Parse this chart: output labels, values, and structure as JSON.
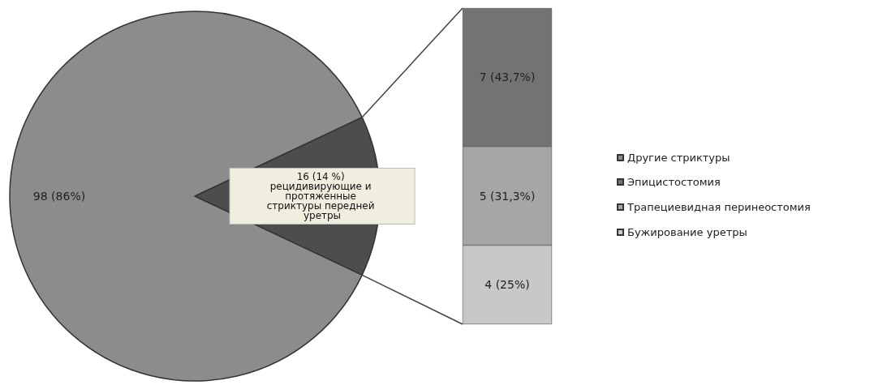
{
  "chart_data": [
    {
      "type": "pie",
      "categories": [
        null,
        "Другие стриктуры"
      ],
      "values": [
        16,
        98
      ],
      "colors": [
        "#4d4d4d",
        "#8c8c8c"
      ],
      "value_labels": [
        "16 (14 %) рецидивирующие и протяженные стриктуры передней уретры",
        "98 (86%)"
      ],
      "legend": "right"
    },
    {
      "type": "bar",
      "stacked": true,
      "categories": [
        null
      ],
      "legend": "right",
      "series": [
        {
          "name": "Бужирование уретры",
          "color": "#c8c8c8",
          "values": [
            4
          ],
          "value_labels": [
            "4 (25%)"
          ]
        },
        {
          "name": "Трапециевидная перинеостомия",
          "color": "#a6a6a6",
          "values": [
            5
          ],
          "value_labels": [
            "5 (31,3%)"
          ]
        },
        {
          "name": "Эпицистостомия",
          "color": "#737373",
          "values": [
            7
          ],
          "value_labels": [
            "7 (43,7%)"
          ]
        }
      ]
    }
  ]
}
